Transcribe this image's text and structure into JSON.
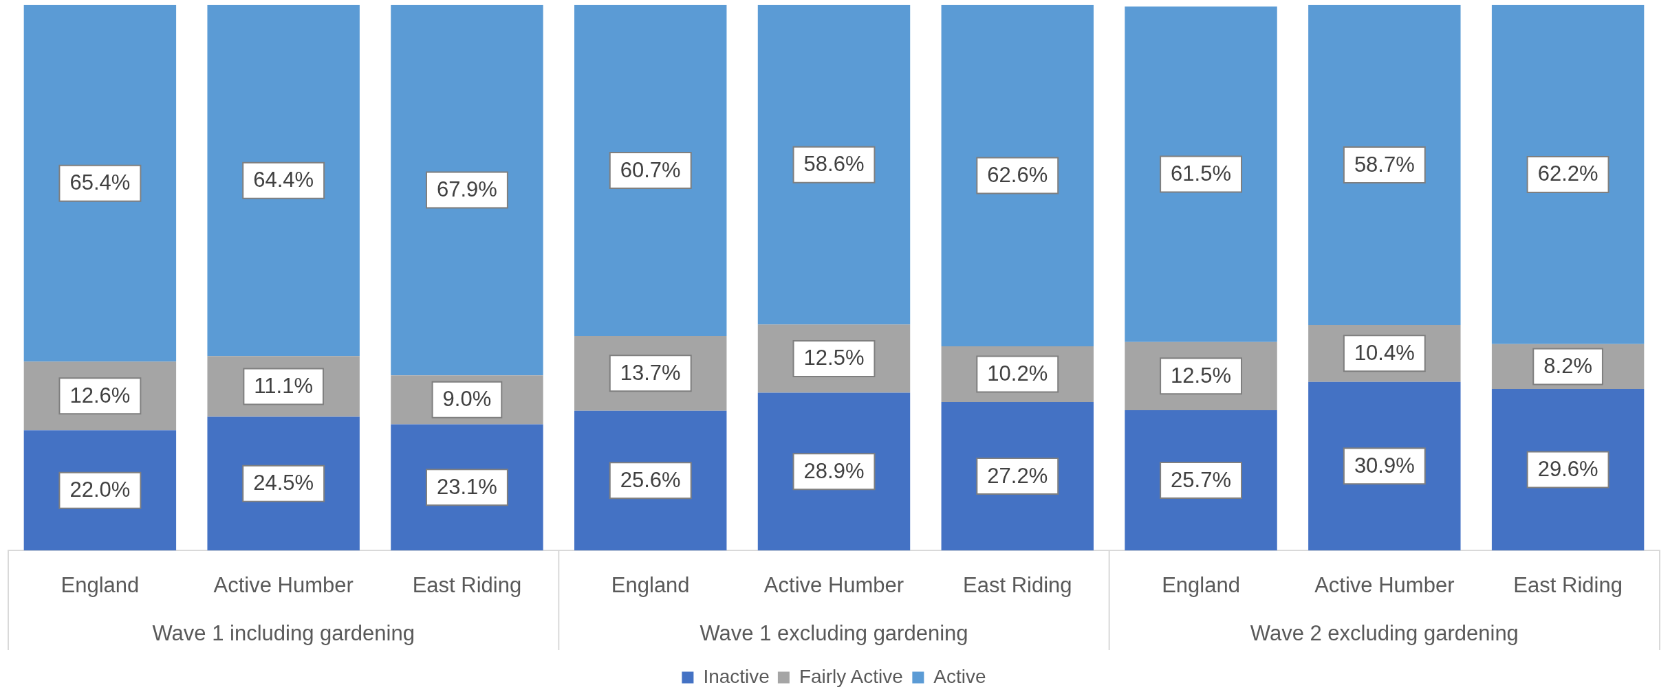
{
  "chart_data": {
    "type": "bar",
    "stacked": true,
    "categories": [
      "England",
      "Active Humber",
      "East Riding",
      "England",
      "Active Humber",
      "East Riding",
      "England",
      "Active Humber",
      "East Riding"
    ],
    "series": [
      {
        "name": "Inactive",
        "color": "#4472c4",
        "values": [
          22.0,
          24.5,
          23.1,
          25.6,
          28.9,
          27.2,
          25.7,
          30.9,
          29.6
        ],
        "value_labels": [
          "22.0%",
          "24.5%",
          "23.1%",
          "25.6%",
          "28.9%",
          "27.2%",
          "25.7%",
          "30.9%",
          "29.6%"
        ]
      },
      {
        "name": "Fairly Active",
        "color": "#a5a5a5",
        "values": [
          12.6,
          11.1,
          9.0,
          13.7,
          12.5,
          10.2,
          12.5,
          10.4,
          8.2
        ],
        "value_labels": [
          "12.6%",
          "11.1%",
          "9.0%",
          "13.7%",
          "12.5%",
          "10.2%",
          "12.5%",
          "10.4%",
          "8.2%"
        ]
      },
      {
        "name": "Active",
        "color": "#5b9bd5",
        "values": [
          65.4,
          64.4,
          67.9,
          60.7,
          58.6,
          62.6,
          61.5,
          58.7,
          62.2
        ],
        "value_labels": [
          "65.4%",
          "64.4%",
          "67.9%",
          "60.7%",
          "58.6%",
          "62.6%",
          "61.5%",
          "58.7%",
          "62.2%"
        ]
      }
    ],
    "annotations": [
      "Wave 1 including gardening",
      "Wave 1 excluding gardening",
      "Wave 2 excluding gardening"
    ],
    "legend": "bottom",
    "grid": false,
    "tick_labels": "x"
  }
}
